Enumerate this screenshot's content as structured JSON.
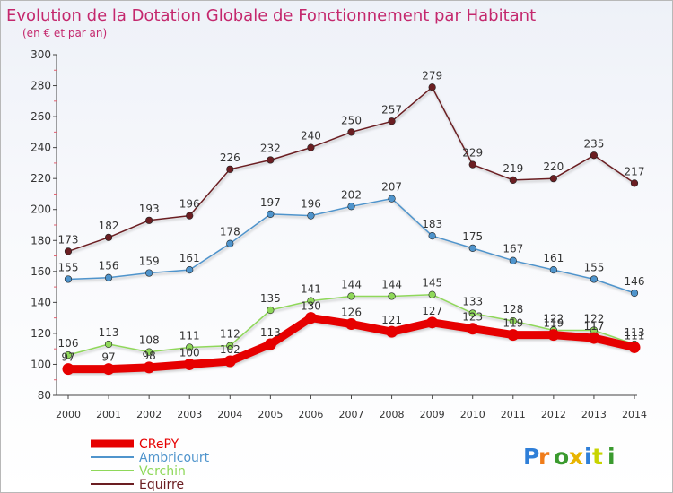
{
  "chart_data": {
    "type": "line",
    "title": "Evolution de la Dotation Globale de Fonctionnement par Habitant",
    "subtitle": "(en € et par an)",
    "x": [
      "2000",
      "2001",
      "2002",
      "2003",
      "2004",
      "2005",
      "2006",
      "2007",
      "2008",
      "2009",
      "2010",
      "2011",
      "2012",
      "2013",
      "2014"
    ],
    "ylim": [
      80,
      300
    ],
    "yticks": [
      80,
      100,
      120,
      140,
      160,
      180,
      200,
      220,
      240,
      260,
      280,
      300
    ],
    "grid": false,
    "legend_position": "bottom-left",
    "series": [
      {
        "name": "Equirre",
        "color": "#6b1e22",
        "values": [
          173,
          182,
          193,
          196,
          226,
          232,
          240,
          250,
          257,
          279,
          229,
          219,
          220,
          235,
          217
        ]
      },
      {
        "name": "Ambricourt",
        "color": "#4f94cc",
        "values": [
          155,
          156,
          159,
          161,
          178,
          197,
          196,
          202,
          207,
          183,
          175,
          167,
          161,
          155,
          146
        ]
      },
      {
        "name": "Verchin",
        "color": "#8fd85a",
        "values": [
          106,
          113,
          108,
          111,
          112,
          135,
          141,
          144,
          144,
          145,
          133,
          128,
          122,
          122,
          113
        ]
      },
      {
        "name": "CRePY",
        "color": "#e60000",
        "values": [
          97,
          97,
          98,
          100,
          102,
          113,
          130,
          126,
          121,
          127,
          123,
          119,
          119,
          117,
          111
        ]
      }
    ]
  },
  "branding": {
    "logo_text": "Proxiti"
  }
}
